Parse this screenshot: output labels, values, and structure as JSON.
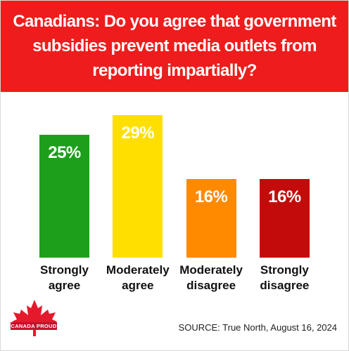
{
  "chart_data": {
    "type": "bar",
    "title": "Canadians: Do you agree that government subsidies prevent media outlets from reporting impartially?",
    "categories": [
      "Strongly agree",
      "Moderately agree",
      "Moderately disagree",
      "Strongly disagree"
    ],
    "values": [
      25,
      29,
      16,
      16
    ],
    "value_labels": [
      "25%",
      "29%",
      "16%",
      "16%"
    ],
    "colors": [
      "#1d9f1b",
      "#ffdf00",
      "#ff8a00",
      "#c40b0b"
    ],
    "source": "SOURCE: True North, August 16, 2024",
    "logo": "CANADA PROUD"
  }
}
